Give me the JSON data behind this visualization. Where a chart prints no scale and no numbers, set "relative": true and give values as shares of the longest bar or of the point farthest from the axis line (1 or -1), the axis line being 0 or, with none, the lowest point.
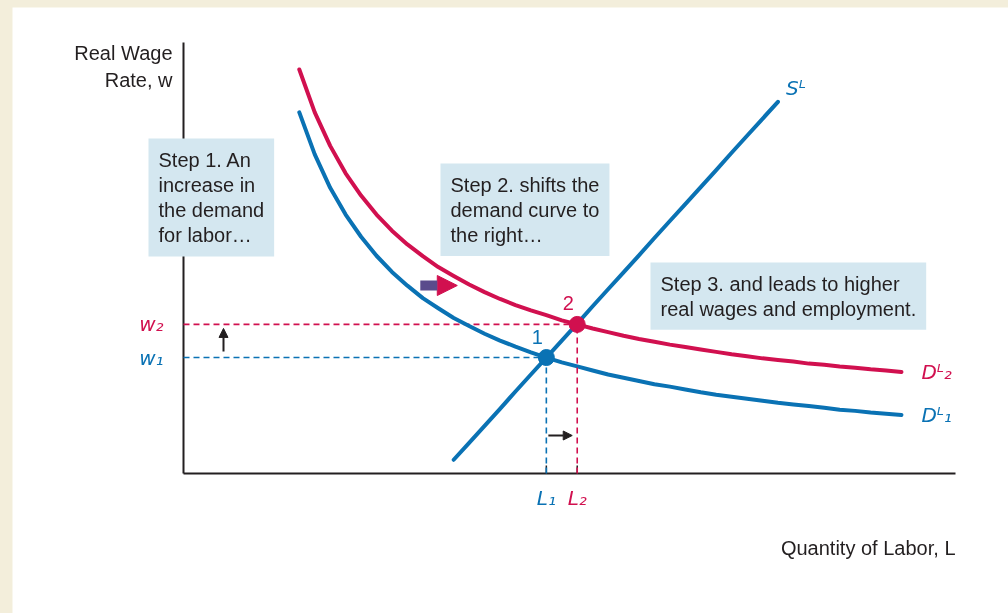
{
  "chart_data": {
    "type": "line",
    "relative": true,
    "xlabel": "Quantity of Labor, L",
    "ylabel": "Real Wage Rate, w",
    "categories": [
      null,
      null,
      null,
      null,
      null,
      null,
      null,
      null,
      null,
      null,
      null,
      null,
      null,
      null,
      null,
      null,
      null,
      null,
      null,
      null,
      null,
      null,
      null,
      "L₁",
      null,
      "L₂",
      null,
      null,
      null,
      null,
      null,
      null,
      null,
      null,
      null,
      null,
      null,
      null,
      null,
      null,
      null,
      null,
      null,
      null,
      null,
      null,
      null,
      null,
      null,
      null
    ],
    "annotations": [
      "Step 1. An increase in the demand for labor…",
      "Step 2. shifts the demand curve to the right…",
      "Step 3. and leads to higher real wages and employment.",
      {
        "text": "1",
        "x": "L₁",
        "y": 0.287
      },
      {
        "text": "2",
        "x": "L₂",
        "y": 0.369
      }
    ],
    "ref_lines": [
      {
        "axis": "y",
        "value": 0.287,
        "label": "w₁",
        "color": "#0a72b4",
        "line_style": "dashed"
      },
      {
        "axis": "y",
        "value": 0.369,
        "label": "w₂",
        "color": "#d1104f",
        "line_style": "dashed"
      }
    ],
    "series": [
      {
        "name": "Sᴸ",
        "color": "#0a72b4",
        "values": [
          null,
          null,
          null,
          null,
          null,
          null,
          null,
          null,
          null,
          null,
          null,
          null,
          null,
          null,
          null,
          null,
          null,
          0.034,
          0.076,
          0.118,
          0.16,
          0.203,
          0.245,
          0.287,
          0.329,
          0.371,
          0.414,
          0.456,
          0.498,
          0.54,
          0.583,
          0.625,
          0.667,
          0.709,
          0.751,
          0.794,
          0.836,
          0.878,
          0.92,
          null,
          null,
          null,
          null,
          null,
          null,
          null,
          null,
          null,
          null,
          null
        ]
      },
      {
        "name": "Dᴸ₁",
        "color": "#0a72b4",
        "values": [
          null,
          null,
          null,
          null,
          null,
          null,
          null,
          0.894,
          0.79,
          0.707,
          0.641,
          0.586,
          0.539,
          0.499,
          0.465,
          0.434,
          0.409,
          0.385,
          0.365,
          0.346,
          0.329,
          0.314,
          0.3,
          0.287,
          0.275,
          0.265,
          0.255,
          0.245,
          0.237,
          0.229,
          0.221,
          0.215,
          0.208,
          0.201,
          0.195,
          0.19,
          0.185,
          0.18,
          0.175,
          0.171,
          0.167,
          0.163,
          0.158,
          0.155,
          0.151,
          0.148,
          0.145,
          null,
          null,
          null
        ]
      },
      {
        "name": "Dᴸ₂",
        "color": "#d1104f",
        "values": [
          null,
          null,
          null,
          null,
          null,
          null,
          null,
          1.0,
          0.894,
          0.811,
          0.743,
          0.688,
          0.641,
          0.601,
          0.567,
          0.538,
          0.511,
          0.489,
          0.468,
          0.449,
          0.432,
          0.417,
          0.404,
          0.392,
          0.379,
          0.369,
          0.359,
          0.35,
          0.341,
          0.333,
          0.326,
          0.319,
          0.313,
          0.307,
          0.301,
          0.295,
          0.29,
          0.285,
          0.281,
          0.277,
          0.272,
          0.269,
          0.265,
          0.262,
          0.258,
          0.255,
          0.251,
          null,
          null,
          null
        ]
      },
      {
        "type": "lollipop",
        "marker": "circle",
        "line_style": "dashed",
        "color": "#0a72b4",
        "x": [
          "L₁"
        ],
        "values": [
          0.287
        ]
      },
      {
        "type": "lollipop",
        "marker": "circle",
        "line_style": "dashed",
        "color": "#d1104f",
        "x": [
          "L₂"
        ],
        "values": [
          0.369
        ]
      }
    ]
  }
}
